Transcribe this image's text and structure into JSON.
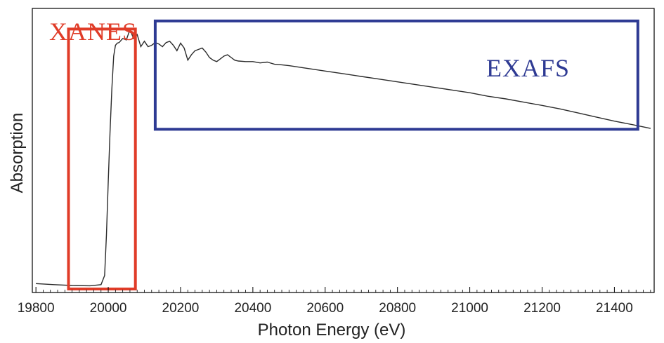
{
  "chart_data": {
    "type": "line",
    "title": "",
    "xlabel": "Photon Energy (eV)",
    "ylabel": "Absorption",
    "xlim": [
      19790,
      21510
    ],
    "ylim": [
      0,
      1
    ],
    "grid": false,
    "x_ticks": [
      19800,
      20000,
      20200,
      20400,
      20600,
      20800,
      21000,
      21200,
      21400
    ],
    "tick_labels": [
      "19800",
      "20000",
      "20200",
      "20400",
      "20600",
      "20800",
      "21000",
      "21200",
      "21400"
    ],
    "colors": {
      "line": "#2b2b2b",
      "xanes": "#e03c28",
      "exafs": "#2e3a93",
      "axis": "#000000"
    },
    "series": [
      {
        "x": [
          19800,
          19850,
          19900,
          19950,
          19980,
          19990,
          19995,
          20000,
          20005,
          20010,
          20015,
          20020,
          20025,
          20030,
          20040,
          20050,
          20060,
          20070,
          20080,
          20090,
          20100,
          20110,
          20120,
          20130,
          20140,
          20150,
          20160,
          20170,
          20180,
          20190,
          20200,
          20210,
          20220,
          20230,
          20240,
          20250,
          20260,
          20270,
          20280,
          20290,
          20300,
          20310,
          20320,
          20330,
          20340,
          20350,
          20360,
          20380,
          20400,
          20420,
          20440,
          20460,
          20480,
          20500,
          20550,
          20600,
          20650,
          20700,
          20750,
          20800,
          20850,
          20900,
          20950,
          21000,
          21050,
          21100,
          21150,
          21200,
          21250,
          21300,
          21350,
          21400,
          21450,
          21500
        ],
        "y": [
          0.02,
          0.016,
          0.013,
          0.012,
          0.016,
          0.05,
          0.2,
          0.4,
          0.58,
          0.74,
          0.86,
          0.9,
          0.908,
          0.91,
          0.925,
          0.92,
          0.958,
          0.925,
          0.94,
          0.895,
          0.915,
          0.895,
          0.9,
          0.91,
          0.905,
          0.895,
          0.91,
          0.915,
          0.9,
          0.88,
          0.908,
          0.89,
          0.845,
          0.865,
          0.88,
          0.885,
          0.89,
          0.875,
          0.855,
          0.845,
          0.84,
          0.85,
          0.86,
          0.865,
          0.855,
          0.845,
          0.842,
          0.84,
          0.84,
          0.835,
          0.838,
          0.83,
          0.828,
          0.825,
          0.815,
          0.805,
          0.795,
          0.785,
          0.775,
          0.765,
          0.755,
          0.745,
          0.735,
          0.725,
          0.712,
          0.702,
          0.69,
          0.678,
          0.665,
          0.65,
          0.635,
          0.62,
          0.607,
          0.593
        ]
      }
    ],
    "regions": [
      {
        "label": "XANES",
        "x0": 19890,
        "x1": 20075,
        "y0": 0.0,
        "y1": 0.96,
        "color": "#e03c28"
      },
      {
        "label": "EXAFS",
        "x0": 20130,
        "x1": 21465,
        "y0": 0.59,
        "y1": 0.99,
        "color": "#2e3a93"
      }
    ]
  }
}
